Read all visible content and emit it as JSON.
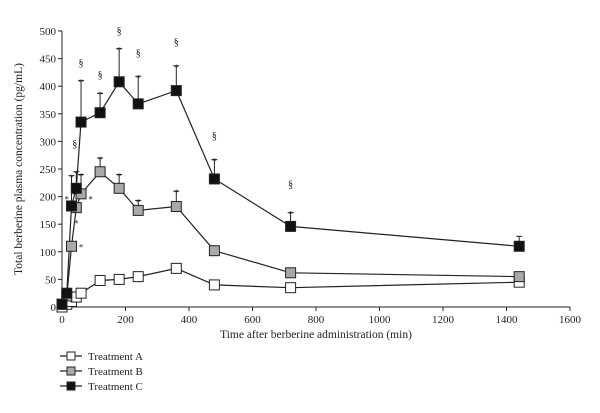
{
  "chart_data": {
    "type": "line",
    "title": "",
    "xlabel": "Time after berberine administration (min)",
    "ylabel": "Total berberine plasma concentration (pg/mL)",
    "xlim": [
      0,
      1600
    ],
    "ylim": [
      0,
      500
    ],
    "xticks": [
      0,
      200,
      400,
      600,
      800,
      1000,
      1200,
      1400,
      1600
    ],
    "yticks": [
      0,
      50,
      100,
      150,
      200,
      250,
      300,
      350,
      400,
      450,
      500
    ],
    "x": [
      0,
      15,
      30,
      45,
      60,
      120,
      180,
      240,
      360,
      480,
      720,
      1440
    ],
    "grid": false,
    "legend_position": "bottom-left",
    "series": [
      {
        "name": "Treatment A",
        "marker": "open-square",
        "fill": "#ffffff",
        "values": [
          0,
          5,
          10,
          18,
          25,
          48,
          50,
          55,
          70,
          40,
          35,
          45
        ],
        "errors": [
          0,
          0,
          0,
          0,
          0,
          5,
          0,
          0,
          8,
          0,
          0,
          0
        ]
      },
      {
        "name": "Treatment B",
        "marker": "gray-square",
        "fill": "#a9a9a9",
        "values": [
          5,
          20,
          110,
          180,
          205,
          245,
          215,
          175,
          182,
          102,
          62,
          55
        ],
        "errors": [
          0,
          0,
          0,
          25,
          35,
          25,
          25,
          18,
          28,
          8,
          0,
          0
        ]
      },
      {
        "name": "Treatment C",
        "marker": "black-square",
        "fill": "#111111",
        "values": [
          5,
          25,
          183,
          215,
          335,
          352,
          408,
          368,
          392,
          232,
          146,
          110
        ],
        "errors": [
          0,
          0,
          55,
          30,
          75,
          35,
          60,
          50,
          45,
          35,
          25,
          18
        ]
      }
    ],
    "annotations": [
      {
        "text": "*",
        "x": 30,
        "y": 237
      },
      {
        "text": "*",
        "x": 45,
        "y": 245
      },
      {
        "text": "*",
        "x": 60,
        "y": 410
      },
      {
        "text": "*",
        "x": 120,
        "y": 388
      },
      {
        "text": "*",
        "x": 180,
        "y": 468
      },
      {
        "text": "*",
        "x": 240,
        "y": 418
      },
      {
        "text": "*",
        "x": 360,
        "y": 437
      },
      {
        "text": "*",
        "x": 480,
        "y": 267
      },
      {
        "text": "*",
        "x": 720,
        "y": 171
      },
      {
        "text": "*",
        "x": 15,
        "y": 198
      },
      {
        "text": "*",
        "x": 45,
        "y": 155
      },
      {
        "text": "*",
        "x": 60,
        "y": 111
      },
      {
        "text": "*",
        "x": 60,
        "y": 240
      },
      {
        "text": "*",
        "x": 90,
        "y": 198
      },
      {
        "text": "*",
        "x": 120,
        "y": 270
      },
      {
        "text": "*",
        "x": 180,
        "y": 240
      },
      {
        "text": "*",
        "x": 240,
        "y": 193
      },
      {
        "text": "*",
        "x": 360,
        "y": 210
      },
      {
        "text": "§",
        "x": 60,
        "y": 442
      },
      {
        "text": "§",
        "x": 120,
        "y": 420
      },
      {
        "text": "§",
        "x": 180,
        "y": 500
      },
      {
        "text": "§",
        "x": 240,
        "y": 460
      },
      {
        "text": "§",
        "x": 360,
        "y": 480
      },
      {
        "text": "§",
        "x": 480,
        "y": 310
      },
      {
        "text": "§",
        "x": 720,
        "y": 222
      },
      {
        "text": "§",
        "x": 40,
        "y": 295
      }
    ]
  }
}
